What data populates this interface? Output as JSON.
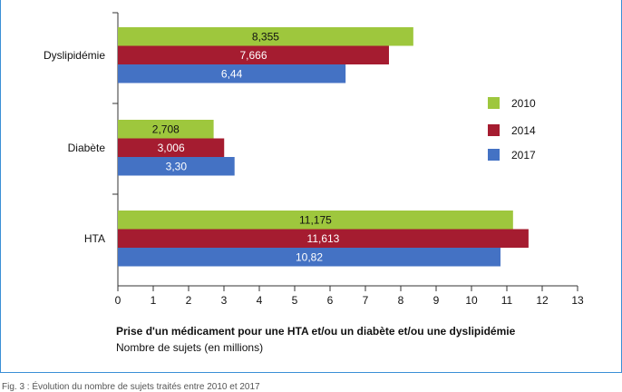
{
  "chart_data": {
    "type": "bar",
    "orientation": "horizontal",
    "categories": [
      "Dyslipidémie",
      "Diabète",
      "HTA"
    ],
    "series": [
      {
        "name": "2010",
        "color": "#9ec73d",
        "values": [
          8.355,
          2.708,
          11.175
        ],
        "labels": [
          "8,355",
          "2,708",
          "11,175"
        ]
      },
      {
        "name": "2014",
        "color": "#a51c30",
        "values": [
          7.666,
          3.006,
          11.613
        ],
        "labels": [
          "7,666",
          "3,006",
          "11,613"
        ]
      },
      {
        "name": "2017",
        "color": "#4472c4",
        "values": [
          6.44,
          3.3,
          10.82
        ],
        "labels": [
          "6,44",
          "3,30",
          "10,82"
        ]
      }
    ],
    "xlim": [
      0,
      13
    ],
    "xticks": [
      0,
      1,
      2,
      3,
      4,
      5,
      6,
      7,
      8,
      9,
      10,
      11,
      12,
      13
    ],
    "xlabel": "Prise d'un médicament pour une HTA et/ou un diabète et/ou une dyslipidémie",
    "xlabel_sub": "Nombre de sujets (en millions)",
    "legend_position": "right",
    "grid": false
  },
  "caption": "Fig. 3 : Évolution du nombre de sujets traités entre 2010 et 2017"
}
